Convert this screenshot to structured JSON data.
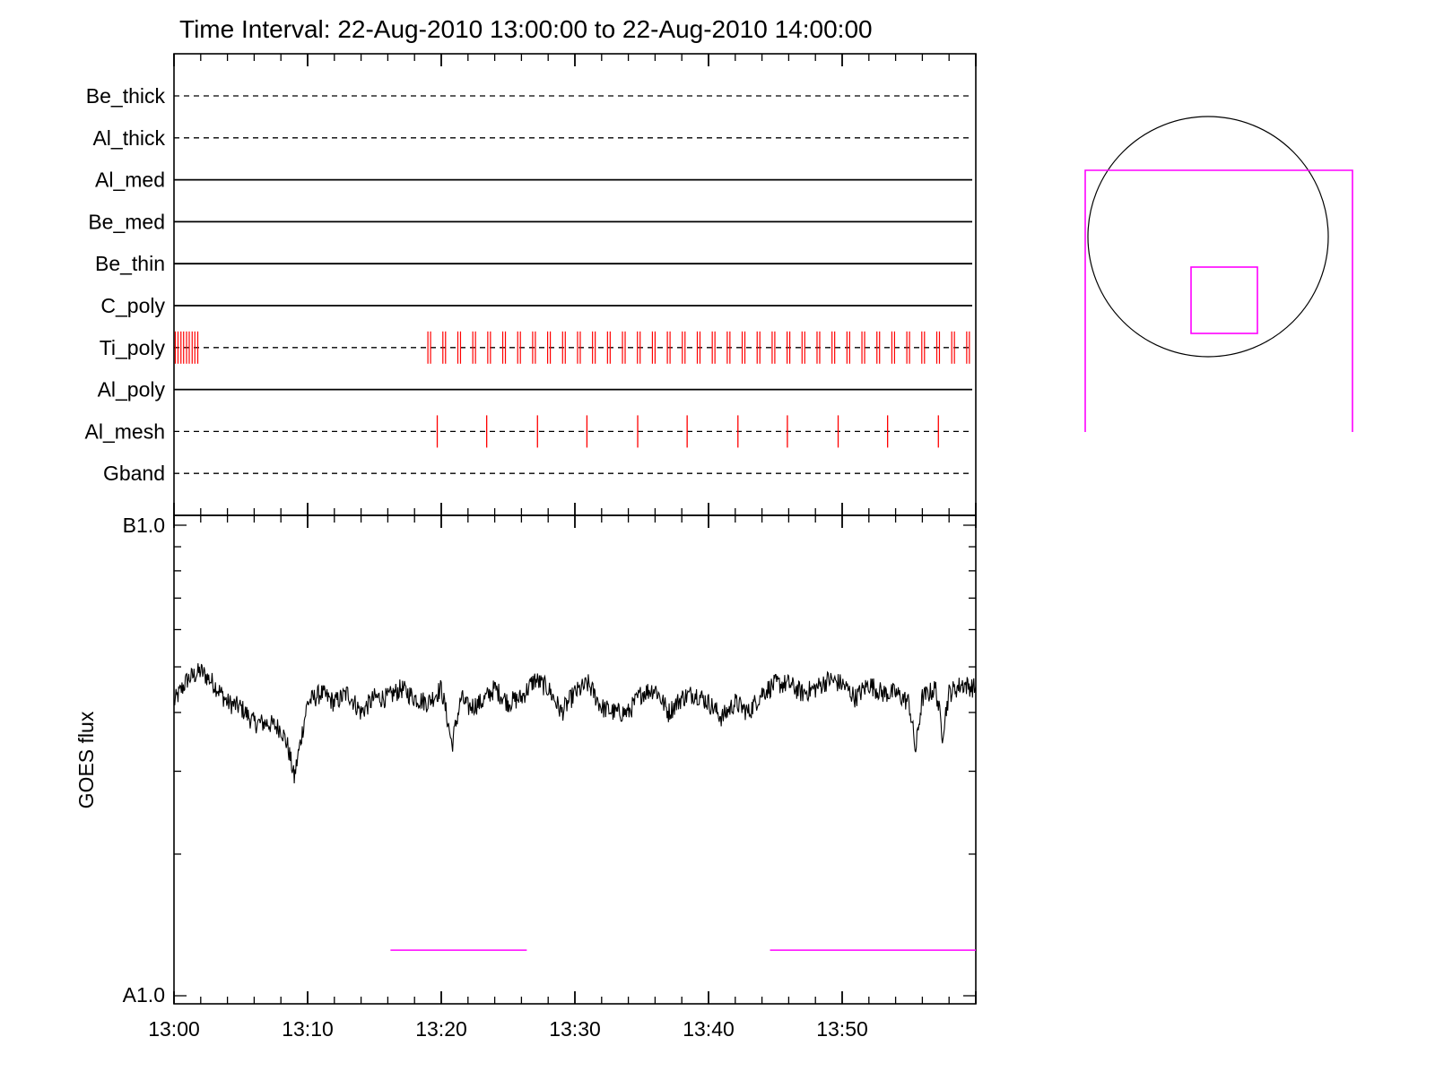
{
  "chart_data": [
    {
      "type": "line",
      "panel": "filter-timeline",
      "title": "Time Interval: 22-Aug-2010 13:00:00 to 22-Aug-2010 14:00:00",
      "xrange": [
        "13:00",
        "14:00"
      ],
      "rows": [
        {
          "label": "Be_thick",
          "style": "dashed",
          "marks": []
        },
        {
          "label": "Al_thick",
          "style": "dashed",
          "marks": []
        },
        {
          "label": "Al_med",
          "style": "solid",
          "marks": []
        },
        {
          "label": "Be_med",
          "style": "solid",
          "marks": []
        },
        {
          "label": "Be_thin",
          "style": "solid",
          "marks": []
        },
        {
          "label": "C_poly",
          "style": "solid",
          "marks": []
        },
        {
          "label": "Ti_poly",
          "style": "dashed",
          "mark_periods": [
            {
              "start_min": 0.1,
              "end_min": 1.8,
              "interval_min": 0.42,
              "pattern": "pair"
            },
            {
              "start_min": 19.0,
              "end_min": 59.6,
              "interval_min": 1.12,
              "pattern": "pair"
            }
          ]
        },
        {
          "label": "Al_poly",
          "style": "solid",
          "marks": []
        },
        {
          "label": "Al_mesh",
          "style": "dashed",
          "marks_min": [
            19.7,
            23.4,
            27.2,
            30.9,
            34.7,
            38.4,
            42.2,
            45.9,
            49.7,
            53.4,
            57.2
          ]
        },
        {
          "label": "Gband",
          "style": "dashed",
          "marks": []
        }
      ],
      "mark_color": "#ff0000"
    },
    {
      "type": "line",
      "panel": "goes-flux",
      "ylabel": "GOES flux",
      "ytick_labels": [
        "B1.0",
        "A1.0"
      ],
      "yscale": "log",
      "ylim": [
        1e-08,
        1e-07
      ],
      "xtick_labels": [
        "13:00",
        "13:10",
        "13:20",
        "13:30",
        "13:40",
        "13:50"
      ],
      "xlim_min": [
        0,
        60
      ],
      "series": [
        {
          "color": "#000000",
          "anchors_min": [
            0,
            1,
            2,
            3,
            4,
            5,
            6,
            7,
            8,
            8.5,
            9,
            9.5,
            10,
            11,
            12,
            13,
            14,
            15,
            16,
            17,
            18,
            19,
            20,
            20.8,
            21.5,
            22,
            23,
            24,
            25,
            26,
            27,
            28,
            29,
            30,
            31,
            32,
            33,
            34,
            35,
            36,
            37,
            38,
            39,
            40,
            41,
            42,
            43,
            44,
            45,
            46,
            47,
            48,
            49,
            50,
            51,
            52,
            53,
            54,
            55,
            55.5,
            56,
            57,
            57.5,
            58,
            59,
            60
          ],
          "anchors_flux": [
            4.2e-08,
            4.7e-08,
            4.9e-08,
            4.6e-08,
            4.2e-08,
            4.1e-08,
            3.8e-08,
            3.8e-08,
            3.7e-08,
            3.4e-08,
            2.9e-08,
            3.5e-08,
            4.2e-08,
            4.4e-08,
            4.2e-08,
            4.4e-08,
            4e-08,
            4.3e-08,
            4.3e-08,
            4.5e-08,
            4.3e-08,
            4.2e-08,
            4.5e-08,
            3.4e-08,
            4.3e-08,
            4.1e-08,
            4.2e-08,
            4.5e-08,
            4.2e-08,
            4.3e-08,
            4.7e-08,
            4.5e-08,
            4e-08,
            4.4e-08,
            4.6e-08,
            4.1e-08,
            4e-08,
            4e-08,
            4.4e-08,
            4.5e-08,
            4e-08,
            4.3e-08,
            4.4e-08,
            4.2e-08,
            3.9e-08,
            4.2e-08,
            4e-08,
            4.4e-08,
            4.6e-08,
            4.6e-08,
            4.4e-08,
            4.5e-08,
            4.7e-08,
            4.6e-08,
            4.3e-08,
            4.6e-08,
            4.4e-08,
            4.4e-08,
            4.2e-08,
            3.3e-08,
            4.3e-08,
            4.5e-08,
            3.6e-08,
            4.4e-08,
            4.6e-08,
            4.5e-08
          ],
          "noise_fraction": 0.05
        }
      ],
      "magenta_segments_min": [
        [
          16.2,
          26.4
        ],
        [
          44.6,
          60
        ]
      ],
      "magenta_level_flux": 1.25e-08,
      "magenta_color": "#ff00ff"
    }
  ],
  "colors": {
    "foreground": "#000000",
    "marks": "#ff0000",
    "highlight": "#ff00ff",
    "background": "#ffffff"
  }
}
